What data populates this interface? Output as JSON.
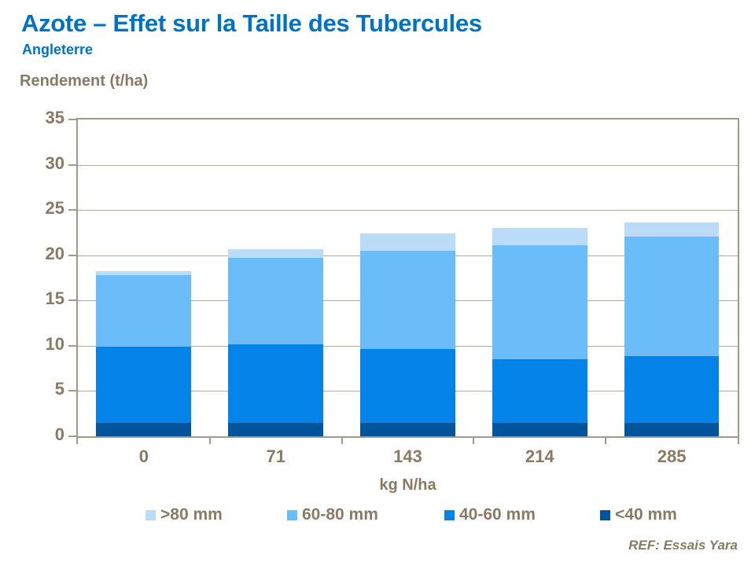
{
  "slide": {
    "title": "Azote – Effet sur la Taille des Tubercules",
    "subtitle": "Angleterre",
    "reference": "REF: Essais Yara"
  },
  "colors": {
    "title_blue": "#0072C6",
    "text_brown": "#8A7A64",
    "axis_line": "#A39988",
    "gridline": "#B3AA9B"
  },
  "chart_data": {
    "type": "bar",
    "stacked": true,
    "title": "Azote – Effet sur la Taille des Tubercules",
    "ylabel": "Rendement (t/ha)",
    "xlabel": "kg N/ha",
    "categories": [
      "0",
      "71",
      "143",
      "214",
      "285"
    ],
    "ylim": [
      0,
      35
    ],
    "yticks": [
      0,
      5,
      10,
      15,
      20,
      25,
      30,
      35
    ],
    "grid": true,
    "legend_position": "bottom",
    "series": [
      {
        "name": "<40 mm",
        "color": "#005499",
        "values": [
          1.5,
          1.5,
          1.5,
          1.5,
          1.5
        ]
      },
      {
        "name": "40-60 mm",
        "color": "#0483E8",
        "values": [
          8.4,
          8.7,
          8.1,
          7.0,
          7.4
        ]
      },
      {
        "name": "60-80 mm",
        "color": "#6ABDF9",
        "values": [
          7.9,
          9.5,
          10.9,
          12.6,
          13.2
        ]
      },
      {
        "name": ">80 mm",
        "color": "#BADCF7",
        "values": [
          0.4,
          1.0,
          1.9,
          1.9,
          1.5
        ]
      }
    ],
    "stack_totals": [
      18.2,
      20.7,
      22.4,
      23.0,
      23.6
    ],
    "legend_order": [
      ">80 mm",
      "60-80 mm",
      "40-60 mm",
      "<40 mm"
    ]
  }
}
